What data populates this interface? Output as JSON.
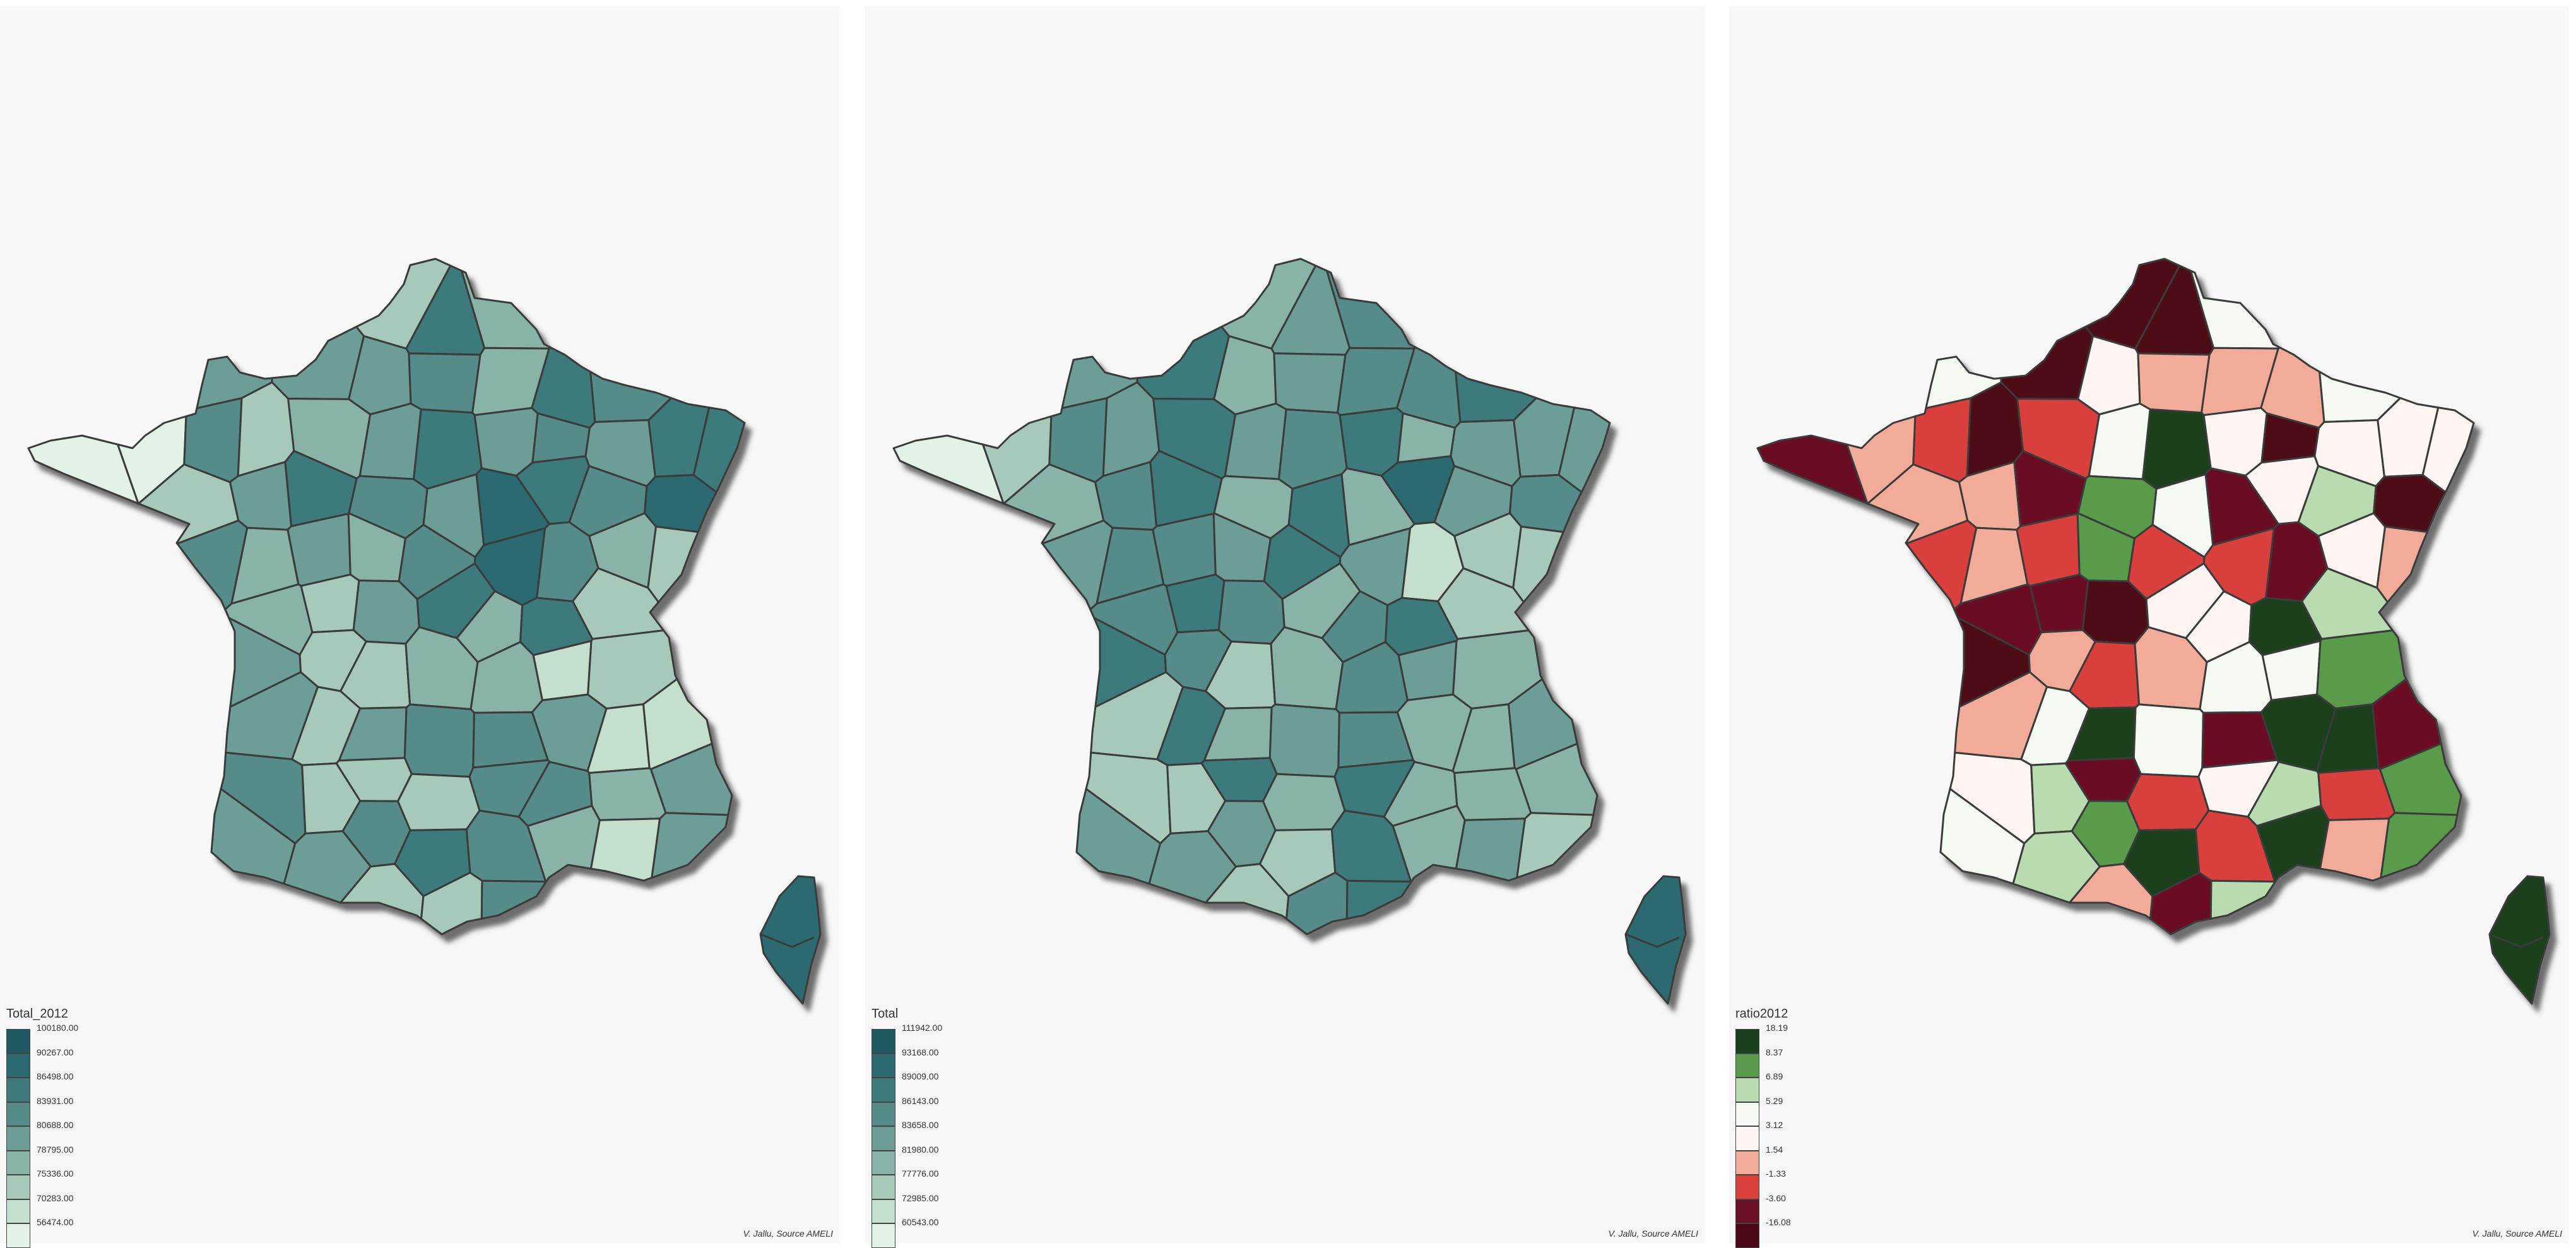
{
  "panels": [
    {
      "legend_title": "Total_2012",
      "credit": "V. Jallu, Source AMELI",
      "legend": [
        {
          "label": "100180.00",
          "color": "#1f5a62"
        },
        {
          "label": "90267.00",
          "color": "#2b6a70"
        },
        {
          "label": "86498.00",
          "color": "#3e7a7c"
        },
        {
          "label": "83931.00",
          "color": "#558c8a"
        },
        {
          "label": "80688.00",
          "color": "#6c9e97"
        },
        {
          "label": "78795.00",
          "color": "#89b3a8"
        },
        {
          "label": "75336.00",
          "color": "#a7c9b9"
        },
        {
          "label": "70283.00",
          "color": "#c4dfcc"
        },
        {
          "label": "56474.00",
          "color": "#e3f2e6"
        }
      ]
    },
    {
      "legend_title": "Total",
      "credit": "V. Jallu, Source AMELI",
      "legend": [
        {
          "label": "111942.00",
          "color": "#1f5a62"
        },
        {
          "label": "93168.00",
          "color": "#2b6a70"
        },
        {
          "label": "89009.00",
          "color": "#3e7a7c"
        },
        {
          "label": "86143.00",
          "color": "#558c8a"
        },
        {
          "label": "83658.00",
          "color": "#6c9e97"
        },
        {
          "label": "81980.00",
          "color": "#89b3a8"
        },
        {
          "label": "77776.00",
          "color": "#a7c9b9"
        },
        {
          "label": "72985.00",
          "color": "#c4dfcc"
        },
        {
          "label": "60543.00",
          "color": "#e3f2e6"
        }
      ]
    },
    {
      "legend_title": "ratio2012",
      "credit": "V. Jallu, Source AMELI",
      "legend": [
        {
          "label": "18.19",
          "color": "#1a401f"
        },
        {
          "label": "8.37",
          "color": "#5a9a4c"
        },
        {
          "label": "6.89",
          "color": "#b9dbb0"
        },
        {
          "label": "5.29",
          "color": "#f4faf2"
        },
        {
          "label": "3.12",
          "color": "#fdf5f2"
        },
        {
          "label": "1.54",
          "color": "#f2ab98"
        },
        {
          "label": "-1.33",
          "color": "#d9413c"
        },
        {
          "label": "-3.60",
          "color": "#6b0f24"
        },
        {
          "label": "-16.08",
          "color": "#4d0818"
        }
      ]
    }
  ]
}
